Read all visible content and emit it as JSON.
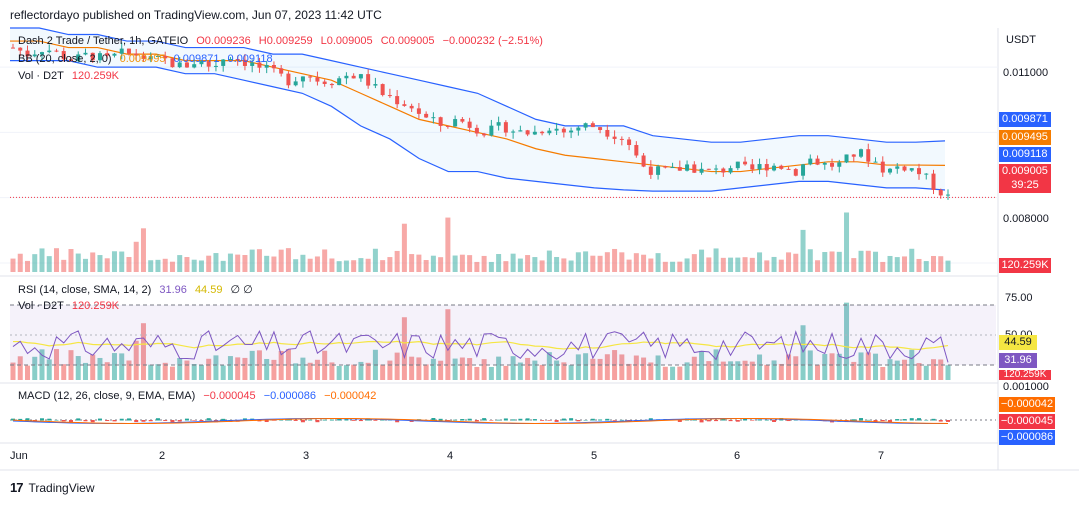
{
  "header": {
    "publisher_line": "reflectordayo published on TradingView.com, Jun 07, 2023 11:42 UTC"
  },
  "main_legend": {
    "symbol": "Dash 2 Trade / Tether, 1h, GATEIO",
    "o": "O0.009236",
    "h": "H0.009259",
    "l": "L0.009005",
    "c": "C0.009005",
    "change": "−0.000232 (−2.51%)",
    "bb_label": "BB (20, close, 2, 0)",
    "bb_basis": "0.009495",
    "bb_upper": "0.009871",
    "bb_lower": "0.009118",
    "vol_label": "Vol · D2T",
    "vol_value": "120.259K"
  },
  "rsi_legend": {
    "label": "RSI (14, close, SMA, 14, 2)",
    "rsi": "31.96",
    "sma": "44.59",
    "extra": "∅ ∅",
    "vol_label": "Vol · D2T",
    "vol_value": "120.259K"
  },
  "macd_legend": {
    "label": "MACD (12, 26, close, 9, EMA, EMA)",
    "hist": "−0.000045",
    "macd": "−0.000086",
    "signal": "−0.000042"
  },
  "price_axis": {
    "currency": "USDT",
    "ticks": [
      "0.011000",
      "0.008000"
    ],
    "badges": [
      {
        "text": "0.009871",
        "color": "#2962ff"
      },
      {
        "text": "0.009495",
        "color": "#f57c00"
      },
      {
        "text": "0.009118",
        "color": "#2962ff"
      },
      {
        "text": "0.009005",
        "color": "#f23645"
      },
      {
        "text": "39:25",
        "color": "#f23645"
      },
      {
        "text": "120.259K",
        "color": "#f23645"
      }
    ]
  },
  "rsi_axis": {
    "ticks": [
      "75.00",
      "50.00"
    ],
    "badges": [
      {
        "text": "44.59",
        "color": "#f5e642",
        "fg": "#131722"
      },
      {
        "text": "31.96",
        "color": "#7e57c2",
        "fg": "#ffffff"
      },
      {
        "text": "120.259K",
        "color": "#f23645",
        "fg": "#ffffff"
      }
    ]
  },
  "macd_axis": {
    "ticks": [
      "0.001000"
    ],
    "badges": [
      {
        "text": "−0.000042",
        "color": "#ff6d00"
      },
      {
        "text": "−0.000045",
        "color": "#f23645"
      },
      {
        "text": "−0.000086",
        "color": "#2962ff"
      }
    ]
  },
  "time_axis": {
    "labels": [
      "Jun",
      "2",
      "3",
      "4",
      "5",
      "6",
      "7"
    ]
  },
  "footer": {
    "brand": "TradingView"
  },
  "chart_data": {
    "type": "candlestick",
    "title": "Dash 2 Trade / Tether, 1h, GATEIO",
    "ylabel": "USDT",
    "ylim": [
      0.0078,
      0.0116
    ],
    "colors": {
      "up": "#26a69a",
      "down": "#ef5350",
      "bb_band": "#2962ff",
      "bb_basis": "#f57c00",
      "rsi": "#7e57c2",
      "rsi_sma": "#f5e642"
    },
    "x_labels": [
      "Jun",
      "2",
      "3",
      "4",
      "5",
      "6",
      "7"
    ],
    "close_path": [
      0.0113,
      0.0112,
      0.0113,
      0.0112,
      0.0111,
      0.0112,
      0.0111,
      0.0112,
      0.0112,
      0.0111,
      0.0111,
      0.011,
      0.0111,
      0.011,
      0.0112,
      0.0111,
      0.011,
      0.0109,
      0.0108,
      0.0109,
      0.0108,
      0.0108,
      0.0109,
      0.0108,
      0.0106,
      0.0105,
      0.0104,
      0.0102,
      0.0101,
      0.0102,
      0.0101,
      0.01,
      0.0101,
      0.01,
      0.01,
      0.0101,
      0.01,
      0.0101,
      0.0101,
      0.01,
      0.0099,
      0.0095,
      0.0094,
      0.0094,
      0.0095,
      0.0094,
      0.0094,
      0.0095,
      0.0094,
      0.0095,
      0.0095,
      0.0094,
      0.0096,
      0.0095,
      0.0095,
      0.0097,
      0.0096,
      0.0094,
      0.0095,
      0.0094,
      0.0092,
      0.009
    ],
    "bb_upper": [
      0.0116,
      0.0116,
      0.0115,
      0.0115,
      0.0114,
      0.0114,
      0.0113,
      0.0113,
      0.0113,
      0.0112,
      0.0112,
      0.0111,
      0.011,
      0.0109,
      0.0108,
      0.0107,
      0.0106,
      0.0104,
      0.0102,
      0.0101,
      0.0101,
      0.0101,
      0.00995,
      0.0099,
      0.00985,
      0.00985,
      0.0099,
      0.00995,
      0.00995,
      0.0099,
      0.00985,
      0.00985,
      0.00987
    ],
    "bb_basis": [
      0.0114,
      0.0114,
      0.0113,
      0.0113,
      0.0112,
      0.0112,
      0.0111,
      0.0111,
      0.0111,
      0.011,
      0.0109,
      0.0108,
      0.0106,
      0.0104,
      0.0102,
      0.0101,
      0.01,
      0.0099,
      0.00975,
      0.00965,
      0.0096,
      0.00955,
      0.0095,
      0.00945,
      0.0094,
      0.0094,
      0.00945,
      0.0095,
      0.00955,
      0.00955,
      0.0095,
      0.0095,
      0.009495
    ],
    "bb_lower": [
      0.0111,
      0.0111,
      0.0111,
      0.011,
      0.011,
      0.011,
      0.0109,
      0.0109,
      0.0108,
      0.0107,
      0.0106,
      0.0104,
      0.0101,
      0.0099,
      0.0096,
      0.0094,
      0.0094,
      0.0093,
      0.00925,
      0.0092,
      0.00915,
      0.00912,
      0.0091,
      0.0091,
      0.0091,
      0.00915,
      0.0092,
      0.00925,
      0.00925,
      0.0092,
      0.00915,
      0.00915,
      0.009118
    ],
    "volume_last": "120.259K",
    "rsi_last": 31.96,
    "rsi_sma_last": 44.59,
    "macd": {
      "histogram": -4.5e-05,
      "macd": -8.6e-05,
      "signal": -4.2e-05
    }
  }
}
